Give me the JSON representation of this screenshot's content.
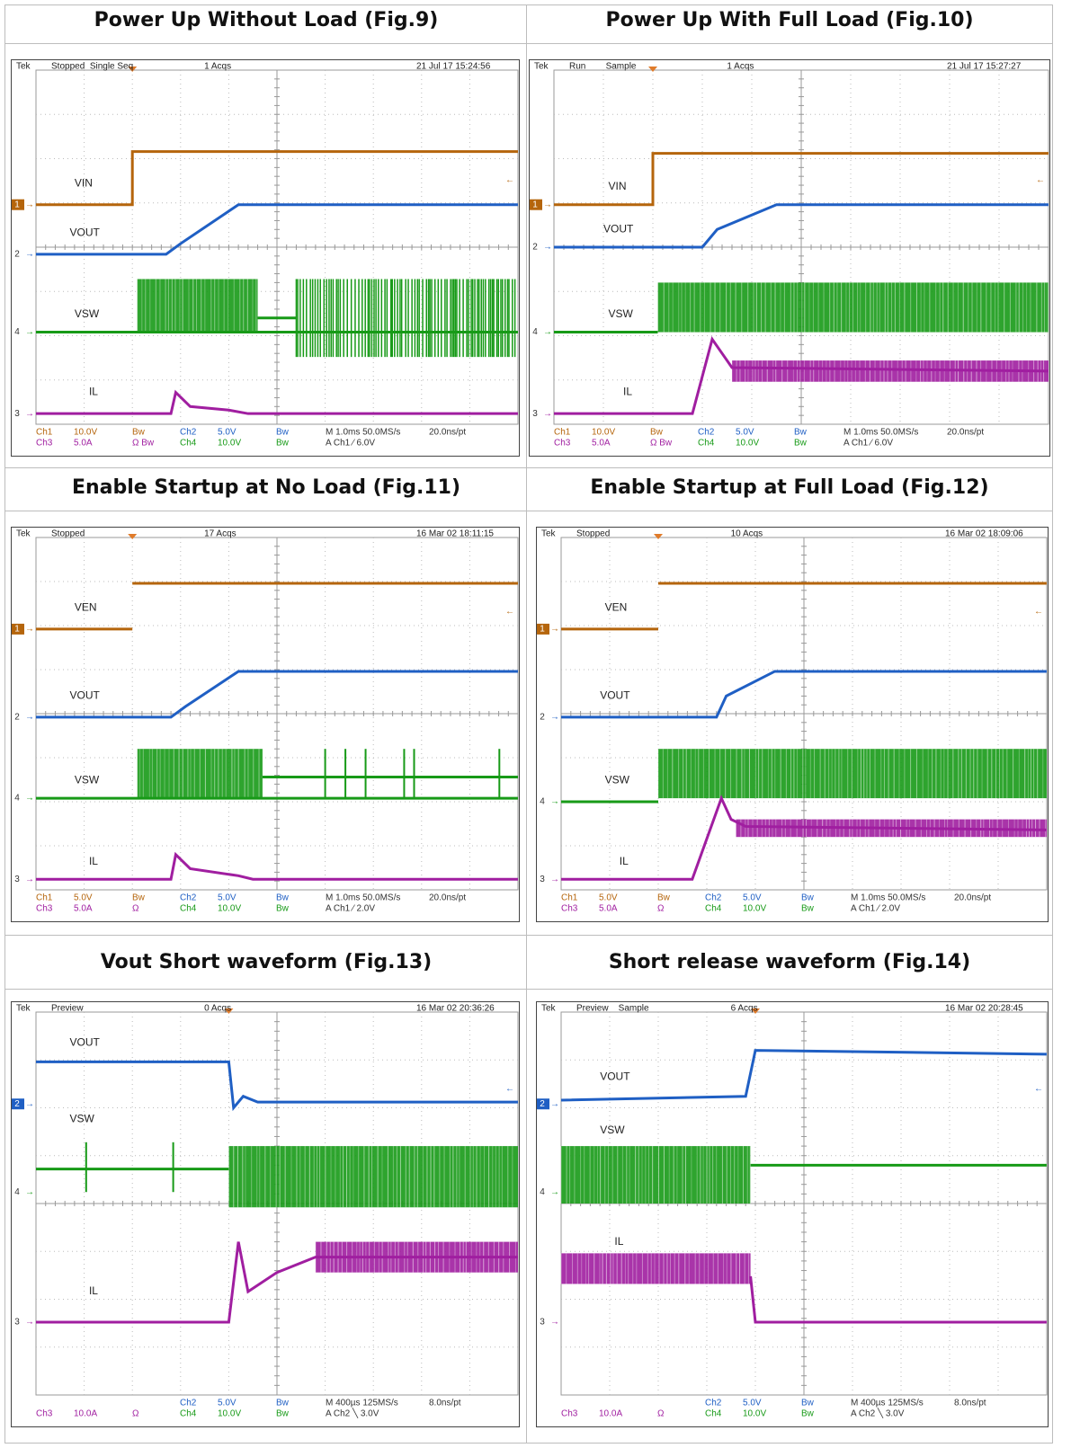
{
  "figures": [
    {
      "title": "Power Up Without Load (Fig.9)",
      "header": [
        "Tek",
        "Stopped  Single Seq",
        "1 Acqs",
        "21 Jul 17 15:24:56"
      ],
      "labels": [
        "VIN",
        "VOUT",
        "VSW",
        "IL"
      ],
      "markers": [
        "1",
        "2",
        "4",
        "3"
      ],
      "footer": [
        [
          "Ch1",
          "10.0V",
          "Bw",
          "Ch2",
          "5.0V",
          "Bw",
          "M 1.0ms 50.0MS/s",
          "20.0ns/pt"
        ],
        [
          "Ch3",
          "5.0A",
          "Ω Bw",
          "Ch4",
          "10.0V",
          "Bw",
          "A Ch1 ⁄ 6.0V"
        ]
      ]
    },
    {
      "title": "Power Up With Full Load (Fig.10)",
      "header": [
        "Tek",
        "Run        Sample",
        "1 Acqs",
        "21 Jul 17 15:27:27"
      ],
      "labels": [
        "VIN",
        "VOUT",
        "VSW",
        "IL"
      ],
      "markers": [
        "1",
        "2",
        "4",
        "3"
      ],
      "footer": [
        [
          "Ch1",
          "10.0V",
          "Bw",
          "Ch2",
          "5.0V",
          "Bw",
          "M 1.0ms 50.0MS/s",
          "20.0ns/pt"
        ],
        [
          "Ch3",
          "5.0A",
          "Ω Bw",
          "Ch4",
          "10.0V",
          "Bw",
          "A Ch1 ⁄ 6.0V"
        ]
      ]
    },
    {
      "title": "Enable Startup at No Load (Fig.11)",
      "header": [
        "Tek",
        "Stopped",
        "17 Acqs",
        "16 Mar 02 18:11:15"
      ],
      "labels": [
        "VEN",
        "VOUT",
        "VSW",
        "IL"
      ],
      "markers": [
        "1",
        "2",
        "4",
        "3"
      ],
      "footer": [
        [
          "Ch1",
          "5.0V",
          "Bw",
          "Ch2",
          "5.0V",
          "Bw",
          "M 1.0ms 50.0MS/s",
          "20.0ns/pt"
        ],
        [
          "Ch3",
          "5.0A",
          "Ω",
          "Ch4",
          "10.0V",
          "Bw",
          "A Ch1 ⁄ 2.0V"
        ]
      ]
    },
    {
      "title": "Enable Startup at Full Load (Fig.12)",
      "header": [
        "Tek",
        "Stopped",
        "10 Acqs",
        "16 Mar 02 18:09:06"
      ],
      "labels": [
        "VEN",
        "VOUT",
        "VSW",
        "IL"
      ],
      "markers": [
        "1",
        "2",
        "4",
        "3"
      ],
      "footer": [
        [
          "Ch1",
          "5.0V",
          "Bw",
          "Ch2",
          "5.0V",
          "Bw",
          "M 1.0ms 50.0MS/s",
          "20.0ns/pt"
        ],
        [
          "Ch3",
          "5.0A",
          "Ω",
          "Ch4",
          "10.0V",
          "Bw",
          "A Ch1 ⁄ 2.0V"
        ]
      ]
    },
    {
      "title": "Vout Short waveform (Fig.13)",
      "header": [
        "Tek",
        "Preview",
        "0 Acqs",
        "16 Mar 02 20:36:26"
      ],
      "labels": [
        "VOUT",
        "VSW",
        "IL"
      ],
      "markers": [
        "2",
        "4",
        "3"
      ],
      "footer": [
        [
          "Ch2",
          "5.0V",
          "Bw",
          "M 400µs 125MS/s",
          "8.0ns/pt"
        ],
        [
          "Ch3",
          "10.0A",
          "Ω",
          "Ch4",
          "10.0V",
          "Bw",
          "A Ch2 ╲ 3.0V"
        ]
      ]
    },
    {
      "title": "Short release waveform (Fig.14)",
      "header": [
        "Tek",
        "Preview    Sample",
        "6 Acqs",
        "16 Mar 02 20:28:45"
      ],
      "labels": [
        "VOUT",
        "VSW",
        "IL"
      ],
      "markers": [
        "2",
        "4",
        "3"
      ],
      "footer": [
        [
          "Ch2",
          "5.0V",
          "Bw",
          "M 400µs 125MS/s",
          "8.0ns/pt"
        ],
        [
          "Ch3",
          "10.0A",
          "Ω",
          "Ch4",
          "10.0V",
          "Bw",
          "A Ch2 ╲ 3.0V"
        ]
      ]
    }
  ]
}
